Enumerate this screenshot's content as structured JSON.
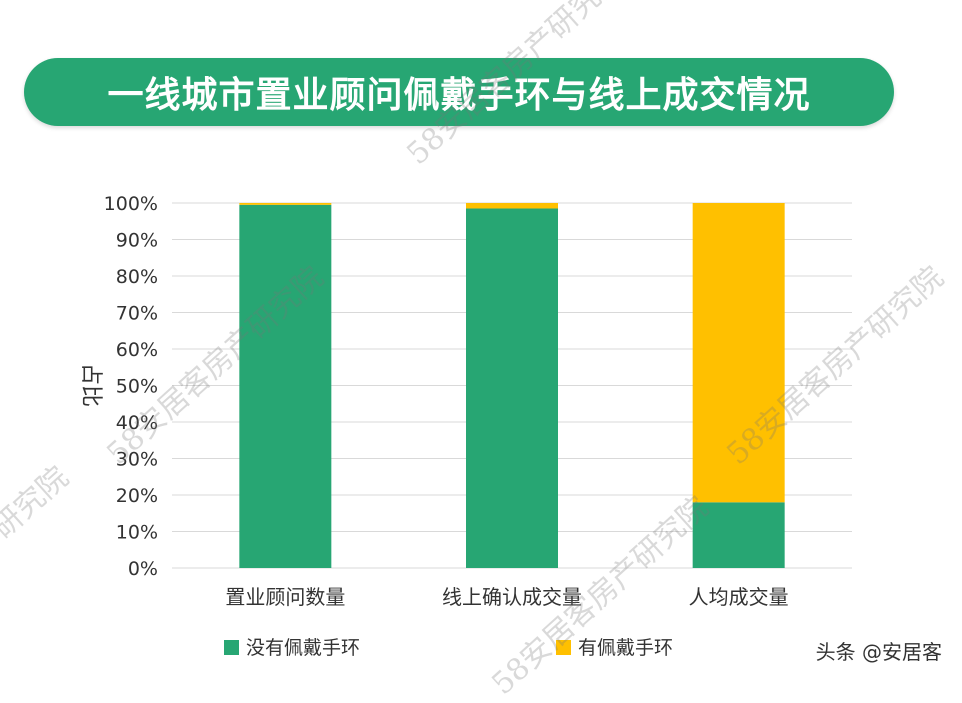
{
  "title": "一线城市置业顾问佩戴手环与线上成交情况",
  "credit": "头条 @安居客",
  "watermark": "58安居客房产研究院",
  "colors": {
    "title_bg": "#27a673",
    "series_1": "#27a673",
    "series_2": "#ffc000",
    "grid": "#d9d9d9",
    "axis_text": "#333333"
  },
  "chart_data": {
    "type": "bar",
    "stacked": true,
    "normalized": true,
    "categories": [
      "置业顾问数量",
      "线上确认成交量",
      "人均成交量"
    ],
    "series": [
      {
        "name": "没有佩戴手环",
        "values": [
          99.5,
          98.5,
          18
        ]
      },
      {
        "name": "有佩戴手环",
        "values": [
          0.5,
          1.5,
          82
        ]
      }
    ],
    "ylabel": "占比",
    "ylim": [
      0,
      100
    ],
    "yticks": [
      "0%",
      "10%",
      "20%",
      "30%",
      "40%",
      "50%",
      "60%",
      "70%",
      "80%",
      "90%",
      "100%"
    ],
    "grid": true,
    "legend_position": "bottom"
  }
}
